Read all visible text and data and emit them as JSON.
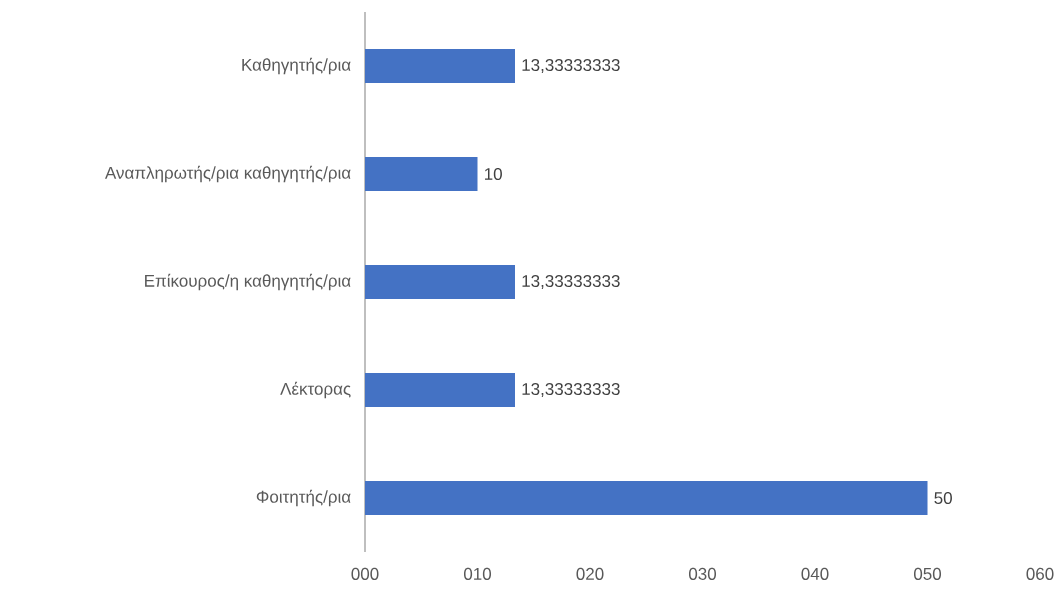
{
  "chart_data": {
    "type": "bar",
    "orientation": "horizontal",
    "categories": [
      "Καθηγητής/ρια",
      "Αναπληρωτής/ρια καθηγητής/ρια",
      "Επίκουρος/η καθηγητής/ρια",
      "Λέκτορας",
      "Φοιτητής/ρια"
    ],
    "values": [
      13.33333333,
      10,
      13.33333333,
      13.33333333,
      50
    ],
    "value_labels": [
      "13,33333333",
      "10",
      "13,33333333",
      "13,33333333",
      "50"
    ],
    "color": "#4472c4",
    "xlim": [
      0,
      60
    ],
    "xticks": [
      {
        "value": 0,
        "label": "000"
      },
      {
        "value": 10,
        "label": "010"
      },
      {
        "value": 20,
        "label": "020"
      },
      {
        "value": 30,
        "label": "030"
      },
      {
        "value": 40,
        "label": "040"
      },
      {
        "value": 50,
        "label": "050"
      },
      {
        "value": 60,
        "label": "060"
      }
    ],
    "grid": false
  }
}
